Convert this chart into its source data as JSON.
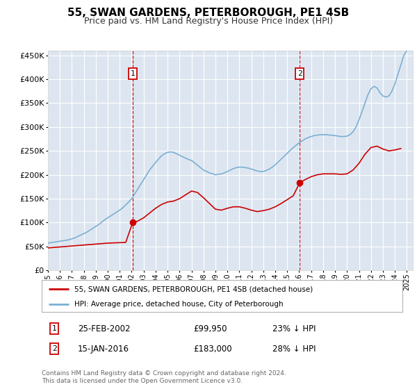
{
  "title": "55, SWAN GARDENS, PETERBOROUGH, PE1 4SB",
  "subtitle": "Price paid vs. HM Land Registry's House Price Index (HPI)",
  "background_color": "#ffffff",
  "plot_bg_color": "#dde6f0",
  "grid_color": "#ffffff",
  "ylim": [
    0,
    460000
  ],
  "yticks": [
    0,
    50000,
    100000,
    150000,
    200000,
    250000,
    300000,
    350000,
    400000,
    450000
  ],
  "xlim_start": 1995.0,
  "xlim_end": 2025.5,
  "x_years": [
    1995,
    1996,
    1997,
    1998,
    1999,
    2000,
    2001,
    2002,
    2003,
    2004,
    2005,
    2006,
    2007,
    2008,
    2009,
    2010,
    2011,
    2012,
    2013,
    2014,
    2015,
    2016,
    2017,
    2018,
    2019,
    2020,
    2021,
    2022,
    2023,
    2024,
    2025
  ],
  "hpi_x": [
    1995.0,
    1995.25,
    1995.5,
    1995.75,
    1996.0,
    1996.25,
    1996.5,
    1996.75,
    1997.0,
    1997.25,
    1997.5,
    1997.75,
    1998.0,
    1998.25,
    1998.5,
    1998.75,
    1999.0,
    1999.25,
    1999.5,
    1999.75,
    2000.0,
    2000.25,
    2000.5,
    2000.75,
    2001.0,
    2001.25,
    2001.5,
    2001.75,
    2002.0,
    2002.25,
    2002.5,
    2002.75,
    2003.0,
    2003.25,
    2003.5,
    2003.75,
    2004.0,
    2004.25,
    2004.5,
    2004.75,
    2005.0,
    2005.25,
    2005.5,
    2005.75,
    2006.0,
    2006.25,
    2006.5,
    2006.75,
    2007.0,
    2007.25,
    2007.5,
    2007.75,
    2008.0,
    2008.25,
    2008.5,
    2008.75,
    2009.0,
    2009.25,
    2009.5,
    2009.75,
    2010.0,
    2010.25,
    2010.5,
    2010.75,
    2011.0,
    2011.25,
    2011.5,
    2011.75,
    2012.0,
    2012.25,
    2012.5,
    2012.75,
    2013.0,
    2013.25,
    2013.5,
    2013.75,
    2014.0,
    2014.25,
    2014.5,
    2014.75,
    2015.0,
    2015.25,
    2015.5,
    2015.75,
    2016.0,
    2016.25,
    2016.5,
    2016.75,
    2017.0,
    2017.25,
    2017.5,
    2017.75,
    2018.0,
    2018.25,
    2018.5,
    2018.75,
    2019.0,
    2019.25,
    2019.5,
    2019.75,
    2020.0,
    2020.25,
    2020.5,
    2020.75,
    2021.0,
    2021.25,
    2021.5,
    2021.75,
    2022.0,
    2022.25,
    2022.5,
    2022.75,
    2023.0,
    2023.25,
    2023.5,
    2023.75,
    2024.0,
    2024.25,
    2024.5,
    2024.75,
    2025.0
  ],
  "hpi_y": [
    57000,
    58000,
    59000,
    60000,
    61000,
    62000,
    63000,
    64000,
    66000,
    68000,
    71000,
    74000,
    77000,
    80000,
    84000,
    88000,
    92000,
    96000,
    101000,
    106000,
    110000,
    114000,
    118000,
    122000,
    126000,
    131000,
    137000,
    143000,
    150000,
    160000,
    170000,
    180000,
    190000,
    200000,
    210000,
    218000,
    226000,
    233000,
    240000,
    244000,
    247000,
    248000,
    247000,
    244000,
    241000,
    238000,
    235000,
    232000,
    230000,
    225000,
    220000,
    215000,
    210000,
    207000,
    204000,
    202000,
    200000,
    201000,
    202000,
    204000,
    207000,
    210000,
    213000,
    215000,
    216000,
    216000,
    215000,
    214000,
    212000,
    210000,
    208000,
    207000,
    207000,
    209000,
    212000,
    216000,
    221000,
    227000,
    233000,
    239000,
    245000,
    251000,
    257000,
    262000,
    267000,
    271000,
    275000,
    278000,
    280000,
    282000,
    283000,
    284000,
    284000,
    284000,
    283000,
    283000,
    282000,
    281000,
    280000,
    280000,
    281000,
    284000,
    290000,
    300000,
    315000,
    332000,
    350000,
    368000,
    380000,
    385000,
    382000,
    372000,
    365000,
    363000,
    365000,
    375000,
    390000,
    410000,
    430000,
    450000,
    460000
  ],
  "red_x": [
    1995.0,
    1995.5,
    1996.0,
    1996.5,
    1997.0,
    1997.5,
    1998.0,
    1998.5,
    1999.0,
    1999.5,
    2000.0,
    2000.5,
    2001.0,
    2001.5,
    2002.08,
    2002.5,
    2003.0,
    2003.5,
    2004.0,
    2004.5,
    2005.0,
    2005.5,
    2006.0,
    2006.5,
    2007.0,
    2007.5,
    2008.0,
    2008.5,
    2009.0,
    2009.5,
    2010.0,
    2010.5,
    2011.0,
    2011.5,
    2012.0,
    2012.5,
    2013.0,
    2013.5,
    2014.0,
    2014.5,
    2015.0,
    2015.5,
    2016.04,
    2016.5,
    2017.0,
    2017.5,
    2018.0,
    2018.5,
    2019.0,
    2019.5,
    2020.0,
    2020.5,
    2021.0,
    2021.5,
    2022.0,
    2022.5,
    2023.0,
    2023.5,
    2024.0,
    2024.5
  ],
  "red_y": [
    47000,
    48000,
    49000,
    50000,
    51000,
    52000,
    53000,
    54000,
    55000,
    56000,
    57000,
    57500,
    58000,
    58500,
    99950,
    103000,
    110000,
    120000,
    130000,
    138000,
    143000,
    145000,
    150000,
    158000,
    166000,
    163000,
    152000,
    140000,
    128000,
    126000,
    130000,
    133000,
    133000,
    130000,
    126000,
    123000,
    125000,
    128000,
    133000,
    140000,
    148000,
    156000,
    183000,
    190000,
    196000,
    200000,
    202000,
    202000,
    202000,
    201000,
    202000,
    210000,
    224000,
    243000,
    257000,
    260000,
    254000,
    250000,
    252000,
    255000
  ],
  "sale1_x": 2002.08,
  "sale1_y": 99950,
  "sale2_x": 2016.04,
  "sale2_y": 183000,
  "sale1_label": "1",
  "sale2_label": "2",
  "legend_line1": "55, SWAN GARDENS, PETERBOROUGH, PE1 4SB (detached house)",
  "legend_line2": "HPI: Average price, detached house, City of Peterborough",
  "annotation1_num": "1",
  "annotation1_date": "25-FEB-2002",
  "annotation1_price": "£99,950",
  "annotation1_hpi": "23% ↓ HPI",
  "annotation2_num": "2",
  "annotation2_date": "15-JAN-2016",
  "annotation2_price": "£183,000",
  "annotation2_hpi": "28% ↓ HPI",
  "footer": "Contains HM Land Registry data © Crown copyright and database right 2024.\nThis data is licensed under the Open Government Licence v3.0.",
  "red_color": "#cc0000",
  "blue_color": "#7bafd4",
  "dashed_color": "#cc0000"
}
